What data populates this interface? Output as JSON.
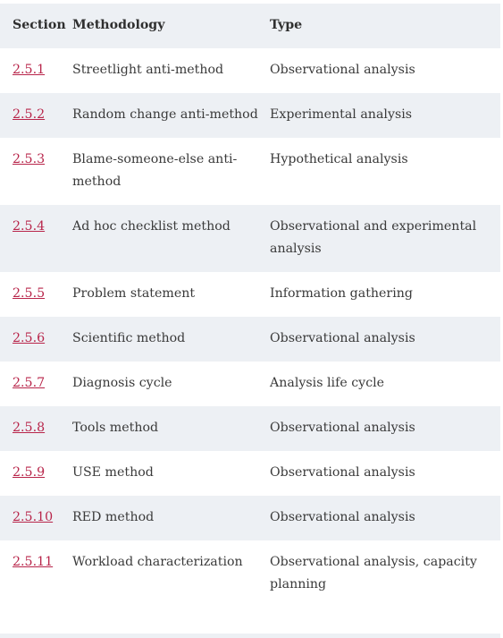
{
  "table": {
    "headers": {
      "section": "Section",
      "methodology": "Methodology",
      "type": "Type"
    },
    "rows": [
      {
        "section": "2.5.1",
        "methodology": "Streetlight anti-method",
        "type": "Observational analysis"
      },
      {
        "section": "2.5.2",
        "methodology": "Random change anti-method",
        "type": "Experimental analysis"
      },
      {
        "section": "2.5.3",
        "methodology": "Blame-someone-else anti-method",
        "type": "Hypothetical analysis"
      },
      {
        "section": "2.5.4",
        "methodology": "Ad hoc checklist method",
        "type": "Observational and experimental analysis"
      },
      {
        "section": "2.5.5",
        "methodology": "Problem statement",
        "type": "Information gathering"
      },
      {
        "section": "2.5.6",
        "methodology": "Scientific method",
        "type": "Observational analysis"
      },
      {
        "section": "2.5.7",
        "methodology": "Diagnosis cycle",
        "type": "Analysis life cycle"
      },
      {
        "section": "2.5.8",
        "methodology": "Tools method",
        "type": "Observational analysis"
      },
      {
        "section": "2.5.9",
        "methodology": "USE method",
        "type": "Observational analysis"
      },
      {
        "section": "2.5.10",
        "methodology": "RED method",
        "type": "Observational analysis"
      },
      {
        "section": "2.5.11",
        "methodology": "Workload characterization",
        "type": "Observational analysis, capacity planning"
      }
    ]
  },
  "colors": {
    "link": "#b8254a",
    "stripe": "#edf0f4",
    "text": "#3a3a3a"
  }
}
